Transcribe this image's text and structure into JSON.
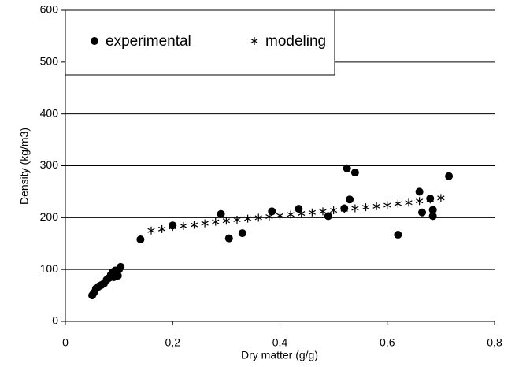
{
  "chart_data": {
    "type": "scatter",
    "x_label": "Dry matter (g/g)",
    "y_label": "Density (kg/m3)",
    "xlim": [
      0,
      0.8
    ],
    "ylim": [
      0,
      600
    ],
    "xticks": [
      0,
      {
        "value": 0.2,
        "label": "0,2"
      },
      {
        "value": 0.4,
        "label": "0,4"
      },
      {
        "value": 0.6,
        "label": "0,6"
      },
      {
        "value": 0.8,
        "label": "0,8"
      }
    ],
    "yticks": [
      0,
      100,
      200,
      300,
      400,
      500,
      600
    ],
    "grid": true,
    "legend": "upper left",
    "series": [
      {
        "name": "experimental",
        "color": "#000000",
        "marker": "circle",
        "x": [
          0.05,
          0.053,
          0.057,
          0.062,
          0.067,
          0.072,
          0.077,
          0.082,
          0.085,
          0.088,
          0.09,
          0.093,
          0.095,
          0.098,
          0.1,
          0.103,
          0.14,
          0.2,
          0.29,
          0.305,
          0.33,
          0.385,
          0.435,
          0.49,
          0.52,
          0.525,
          0.53,
          0.54,
          0.62,
          0.66,
          0.665,
          0.68,
          0.685,
          0.685,
          0.715
        ],
        "values": [
          50,
          55,
          63,
          67,
          70,
          73,
          80,
          84,
          90,
          95,
          85,
          98,
          92,
          88,
          100,
          105,
          158,
          185,
          207,
          160,
          170,
          212,
          217,
          203,
          218,
          295,
          235,
          287,
          167,
          250,
          210,
          237,
          215,
          203,
          280
        ]
      },
      {
        "name": "modeling",
        "color": "#000000",
        "marker": "star",
        "x": [
          0.16,
          0.18,
          0.2,
          0.22,
          0.24,
          0.26,
          0.28,
          0.3,
          0.32,
          0.34,
          0.36,
          0.38,
          0.4,
          0.42,
          0.44,
          0.46,
          0.48,
          0.5,
          0.52,
          0.54,
          0.56,
          0.58,
          0.6,
          0.62,
          0.64,
          0.66,
          0.68,
          0.7
        ],
        "values": [
          175,
          178,
          182,
          184,
          186,
          189,
          192,
          194,
          196,
          198,
          200,
          202,
          204,
          206,
          208,
          210,
          212,
          214,
          216,
          218,
          220,
          222,
          224,
          227,
          229,
          232,
          235,
          238
        ]
      }
    ]
  }
}
